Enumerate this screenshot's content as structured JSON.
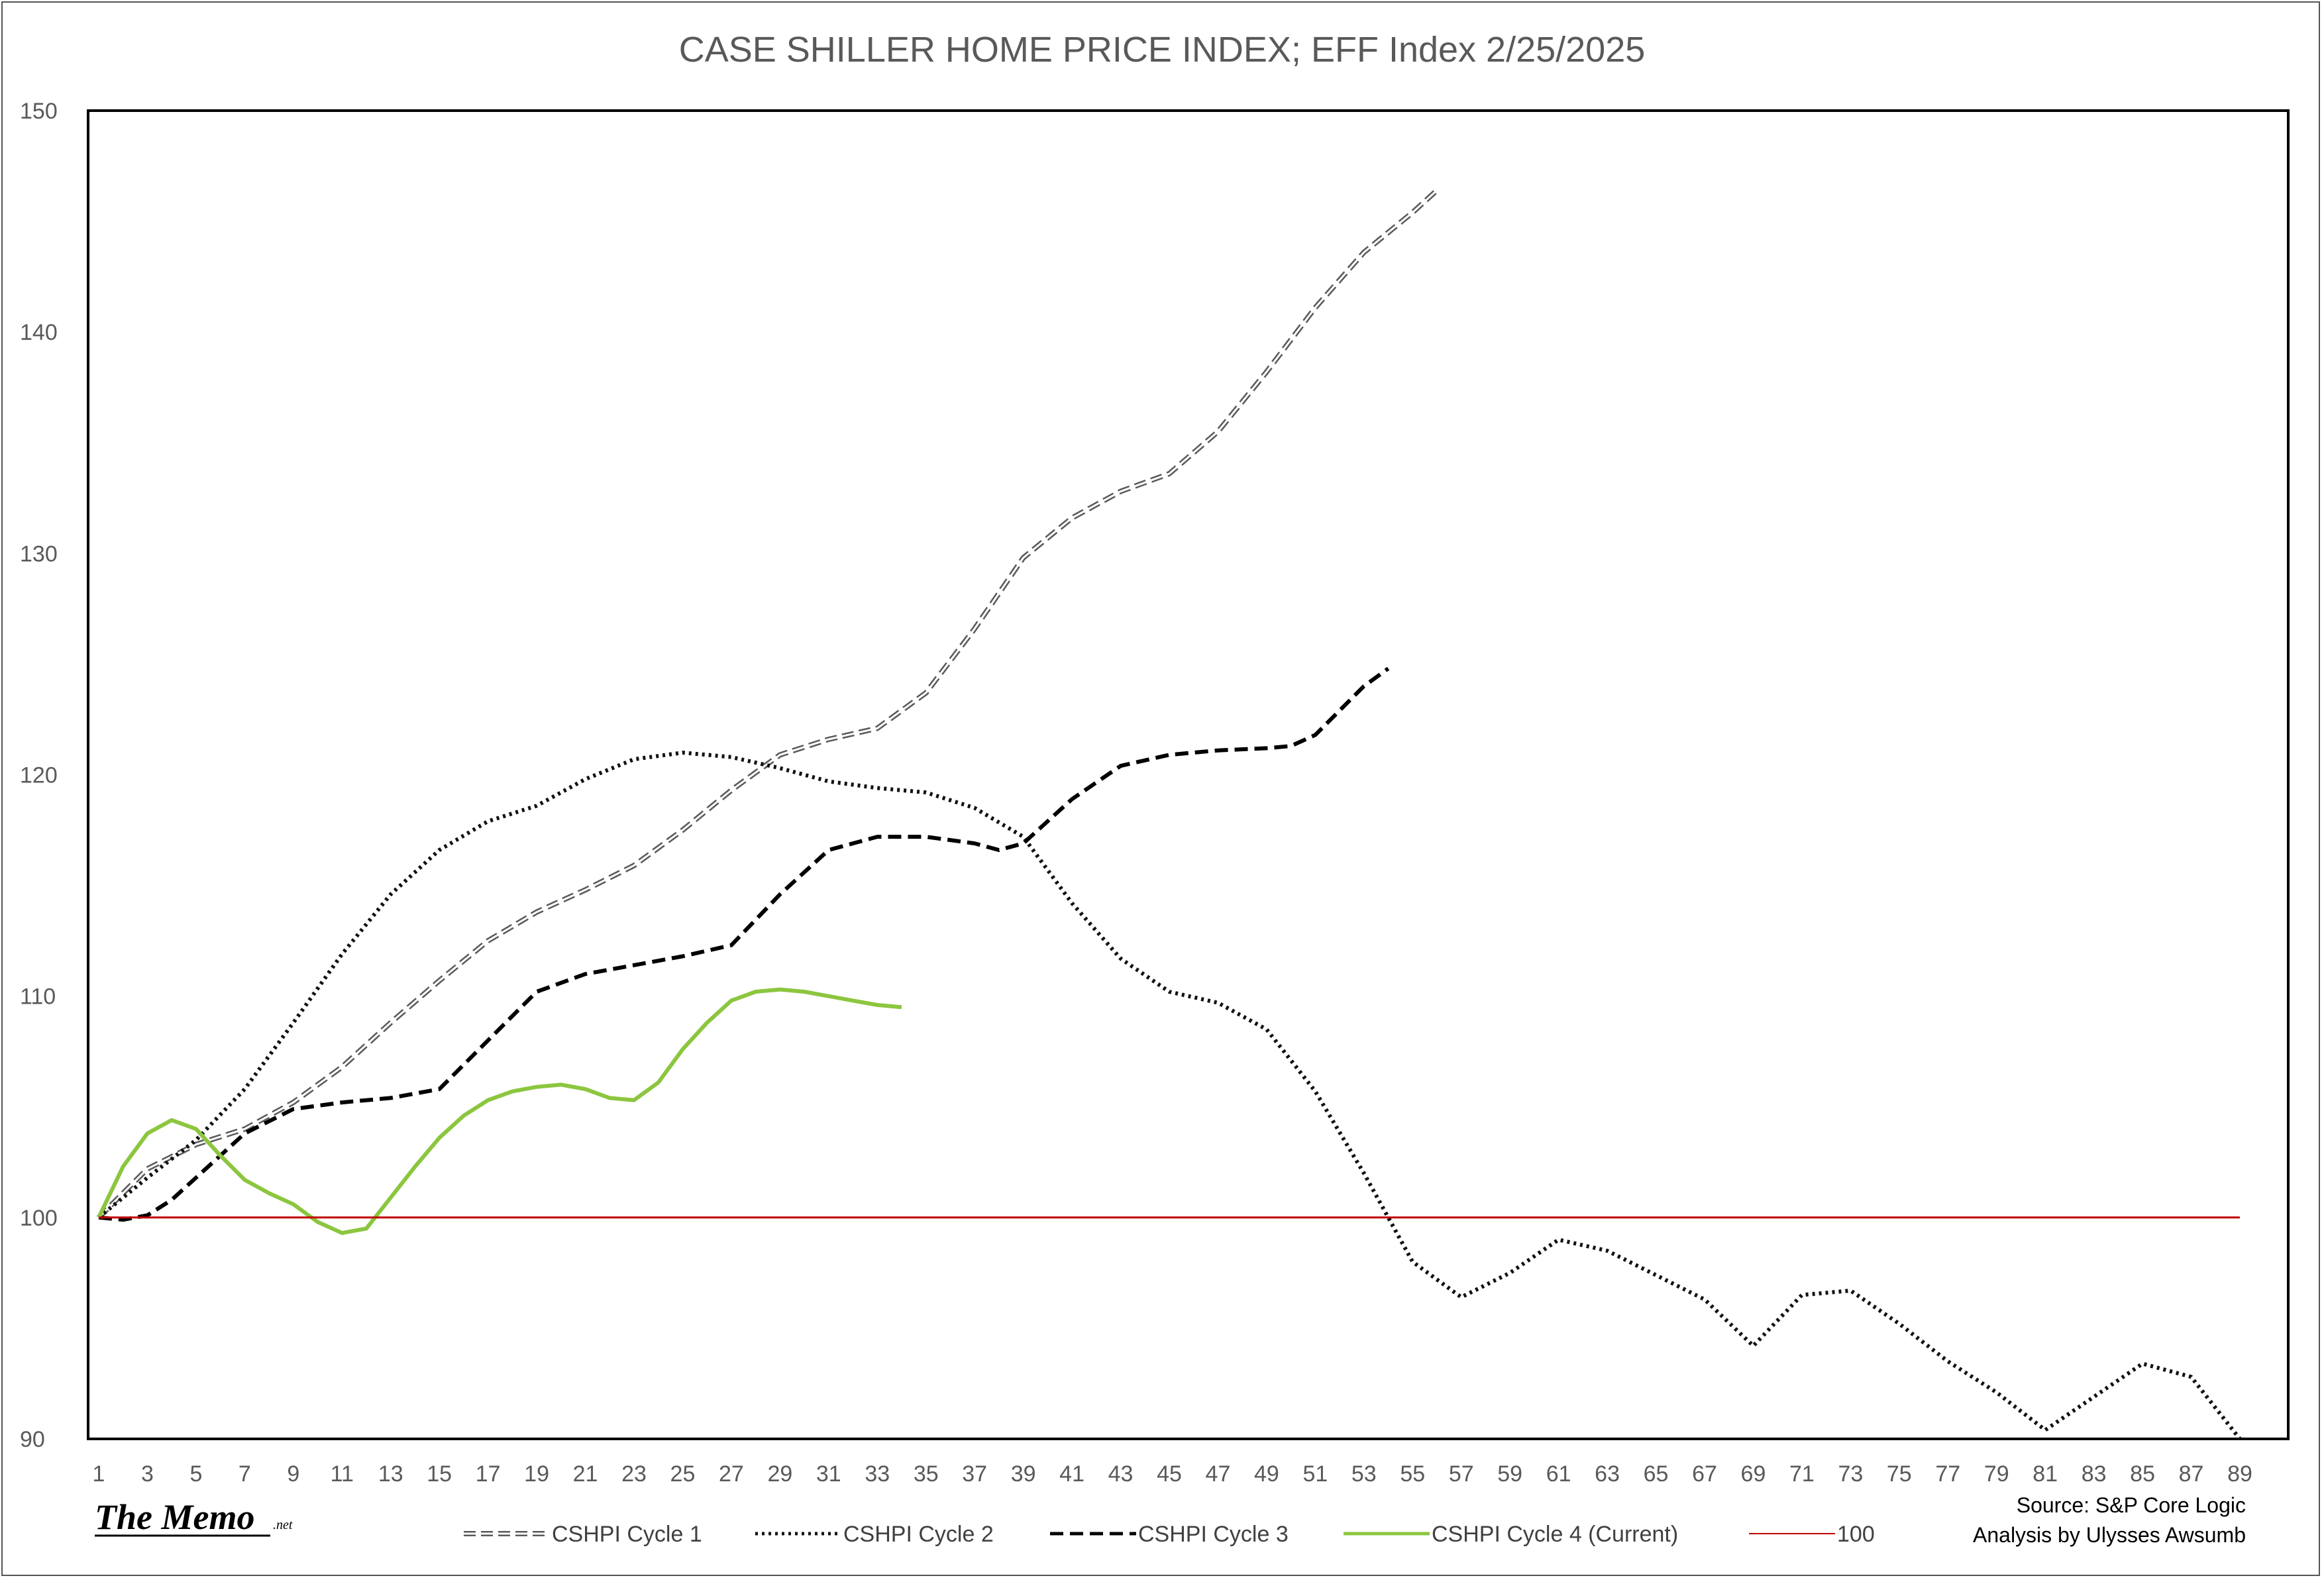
{
  "chart_data": {
    "type": "line",
    "title": "CASE SHILLER HOME PRICE INDEX; EFF Index 2/25/2025",
    "xlabel": "",
    "ylabel": "",
    "xlim": [
      1,
      89
    ],
    "ylim": [
      90,
      150
    ],
    "yticks": [
      90,
      100,
      110,
      120,
      130,
      140,
      150
    ],
    "xticks": [
      1,
      3,
      5,
      7,
      9,
      11,
      13,
      15,
      17,
      19,
      21,
      23,
      25,
      27,
      29,
      31,
      33,
      35,
      37,
      39,
      41,
      43,
      45,
      47,
      49,
      51,
      53,
      55,
      57,
      59,
      61,
      63,
      65,
      67,
      69,
      71,
      73,
      75,
      77,
      79,
      81,
      83,
      85,
      87,
      89
    ],
    "grid": false,
    "legend_position": "bottom",
    "series": [
      {
        "name": "CSHPI Cycle 1",
        "color": "#595959",
        "style": "double-dash",
        "x": [
          1,
          3,
          5,
          7,
          9,
          11,
          13,
          15,
          17,
          19,
          21,
          23,
          25,
          27,
          29,
          31,
          33,
          35,
          37,
          39,
          41,
          43,
          45,
          47,
          49,
          51,
          53,
          55,
          56
        ],
        "y": [
          100,
          102.2,
          103.3,
          104,
          105.2,
          106.8,
          108.8,
          110.7,
          112.5,
          113.8,
          114.8,
          115.9,
          117.5,
          119.3,
          120.9,
          121.6,
          122.1,
          123.7,
          126.6,
          129.8,
          131.6,
          132.8,
          133.6,
          135.5,
          138.2,
          141.1,
          143.6,
          145.4,
          146.4
        ]
      },
      {
        "name": "CSHPI Cycle 2",
        "color": "#111111",
        "style": "dotted",
        "x": [
          1,
          3,
          5,
          7,
          9,
          11,
          13,
          15,
          17,
          19,
          21,
          23,
          25,
          27,
          29,
          31,
          33,
          35,
          37,
          39,
          41,
          43,
          45,
          47,
          49,
          51,
          53,
          55,
          57,
          59,
          61,
          63,
          65,
          67,
          69,
          71,
          73,
          75,
          77,
          79,
          81,
          83,
          85,
          87,
          89
        ],
        "y": [
          100,
          101.8,
          103.5,
          105.8,
          108.8,
          111.9,
          114.6,
          116.6,
          117.9,
          118.6,
          119.8,
          120.7,
          121,
          120.8,
          120.3,
          119.7,
          119.4,
          119.2,
          118.5,
          117.2,
          114.2,
          111.7,
          110.2,
          109.7,
          108.5,
          105.7,
          102,
          98,
          96.4,
          97.5,
          99,
          98.5,
          97.4,
          96.3,
          94.2,
          96.5,
          96.7,
          95.2,
          93.5,
          92.1,
          90.4,
          91.9,
          93.4,
          92.8,
          90
        ]
      },
      {
        "name": "CSHPI Cycle 3",
        "color": "#000000",
        "style": "dashed",
        "x": [
          1,
          2,
          3,
          4,
          5,
          7,
          9,
          11,
          13,
          15,
          17,
          19,
          21,
          23,
          25,
          27,
          29,
          31,
          33,
          35,
          37,
          38,
          39,
          41,
          43,
          45,
          47,
          49,
          50,
          51,
          53,
          54
        ],
        "y": [
          100,
          99.9,
          100.1,
          100.8,
          101.8,
          103.8,
          104.9,
          105.2,
          105.4,
          105.8,
          108,
          110.2,
          111,
          111.4,
          111.8,
          112.3,
          114.6,
          116.6,
          117.2,
          117.2,
          116.9,
          116.6,
          116.9,
          118.9,
          120.4,
          120.9,
          121.1,
          121.2,
          121.3,
          121.8,
          124,
          124.8
        ]
      },
      {
        "name": "CSHPI Cycle 4 (Current)",
        "color": "#8cc63f",
        "style": "solid",
        "x": [
          1,
          2,
          3,
          4,
          5,
          6,
          7,
          8,
          9,
          10,
          11,
          12,
          13,
          14,
          15,
          16,
          17,
          18,
          19,
          20,
          21,
          22,
          23,
          24,
          25,
          26,
          27,
          28,
          29,
          30,
          31,
          32,
          33,
          34
        ],
        "y": [
          100,
          102.3,
          103.8,
          104.4,
          104,
          102.8,
          101.7,
          101.1,
          100.6,
          99.8,
          99.3,
          99.5,
          100.9,
          102.3,
          103.6,
          104.6,
          105.3,
          105.7,
          105.9,
          106,
          105.8,
          105.4,
          105.3,
          106.1,
          107.6,
          108.8,
          109.8,
          110.2,
          110.3,
          110.2,
          110,
          109.8,
          109.6,
          109.5
        ]
      },
      {
        "name": "100",
        "color": "#c00000",
        "style": "solid",
        "x": [
          1,
          89
        ],
        "y": [
          100,
          100
        ]
      }
    ]
  },
  "footer": {
    "brand_main": "The Memo",
    "brand_suffix": ".net",
    "source_line1": "Source: S&P Core Logic",
    "source_line2": "Analysis by Ulysses Awsumb"
  }
}
